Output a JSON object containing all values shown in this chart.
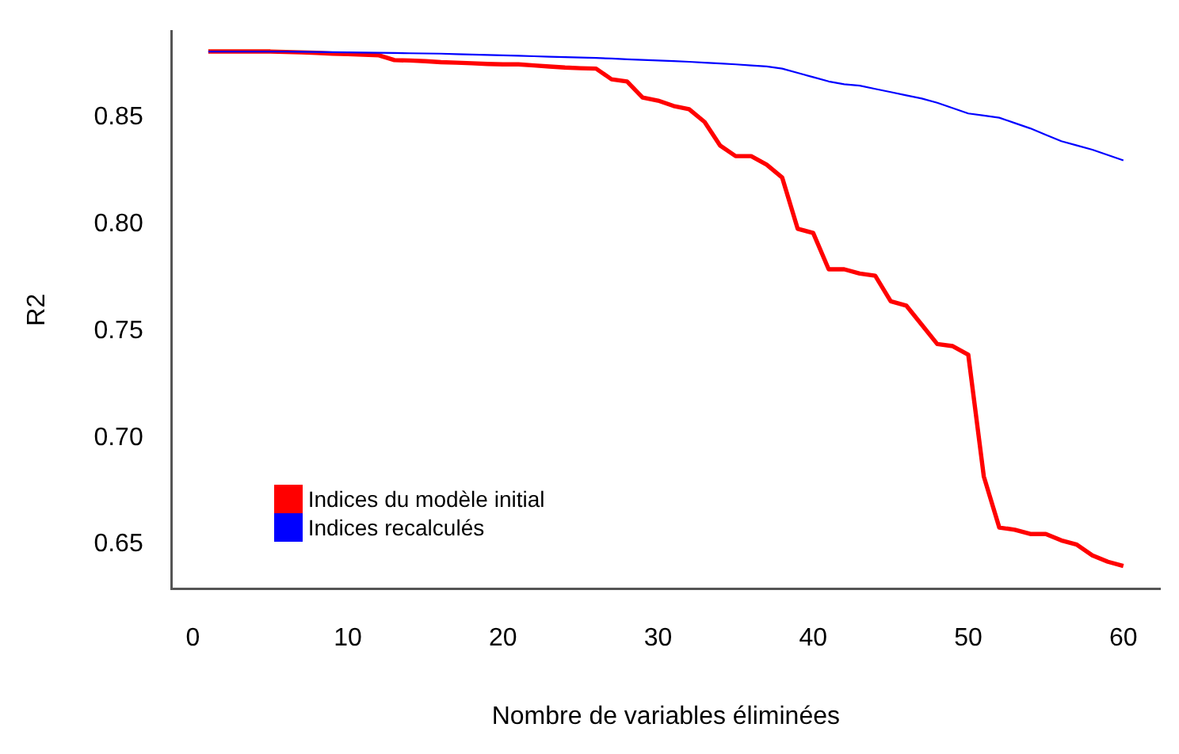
{
  "chart_data": {
    "type": "line",
    "xlabel": "Nombre de variables éliminées",
    "ylabel": "R2",
    "x": [
      1,
      2,
      3,
      4,
      5,
      6,
      7,
      8,
      9,
      10,
      11,
      12,
      13,
      14,
      15,
      16,
      17,
      18,
      19,
      20,
      21,
      22,
      23,
      24,
      25,
      26,
      27,
      28,
      29,
      30,
      31,
      32,
      33,
      34,
      35,
      36,
      37,
      38,
      39,
      40,
      41,
      42,
      43,
      44,
      45,
      46,
      47,
      48,
      49,
      50,
      51,
      52,
      53,
      54,
      55,
      56,
      57,
      58,
      59,
      60
    ],
    "series": [
      {
        "name": "Indices du modèle initial",
        "color": "#ff0000",
        "values": [
          0.881,
          0.881,
          0.881,
          0.881,
          0.881,
          0.8808,
          0.8806,
          0.8804,
          0.88,
          0.8798,
          0.8795,
          0.8792,
          0.877,
          0.8768,
          0.8765,
          0.876,
          0.8758,
          0.8755,
          0.8752,
          0.875,
          0.875,
          0.8745,
          0.874,
          0.8735,
          0.8732,
          0.873,
          0.868,
          0.867,
          0.8595,
          0.858,
          0.8555,
          0.854,
          0.848,
          0.837,
          0.832,
          0.832,
          0.828,
          0.822,
          0.798,
          0.796,
          0.779,
          0.779,
          0.777,
          0.776,
          0.764,
          0.762,
          0.753,
          0.744,
          0.743,
          0.739,
          0.682,
          0.658,
          0.657,
          0.655,
          0.655,
          0.652,
          0.65,
          0.645,
          0.642,
          0.64
        ]
      },
      {
        "name": "Indices recalculés",
        "color": "#0000ff",
        "values": [
          0.881,
          0.881,
          0.881,
          0.881,
          0.881,
          0.881,
          0.8809,
          0.8808,
          0.8807,
          0.8806,
          0.8805,
          0.8804,
          0.8803,
          0.8802,
          0.8801,
          0.88,
          0.8798,
          0.8796,
          0.8794,
          0.8792,
          0.879,
          0.8788,
          0.8786,
          0.8784,
          0.8782,
          0.878,
          0.8777,
          0.8774,
          0.8771,
          0.8768,
          0.8765,
          0.8762,
          0.8758,
          0.8754,
          0.875,
          0.8745,
          0.874,
          0.873,
          0.871,
          0.869,
          0.867,
          0.8657,
          0.865,
          0.8635,
          0.862,
          0.8605,
          0.859,
          0.857,
          0.8545,
          0.852,
          0.851,
          0.85,
          0.8475,
          0.845,
          0.842,
          0.839,
          0.837,
          0.835,
          0.8325,
          0.83
        ]
      }
    ],
    "xlim": [
      -1.36,
      62.36
    ],
    "ylim": [
      0.6294,
      0.8906
    ],
    "xticks": [
      0,
      10,
      20,
      30,
      40,
      50,
      60
    ],
    "yticks": [
      {
        "value": 0.65,
        "label": "0.65"
      },
      {
        "value": 0.7,
        "label": "0.70"
      },
      {
        "value": 0.75,
        "label": "0.75"
      },
      {
        "value": 0.8,
        "label": "0.80"
      },
      {
        "value": 0.85,
        "label": "0.85"
      }
    ],
    "grid": false,
    "legend": "bottom left",
    "marker": "none",
    "line_style": "solid"
  }
}
